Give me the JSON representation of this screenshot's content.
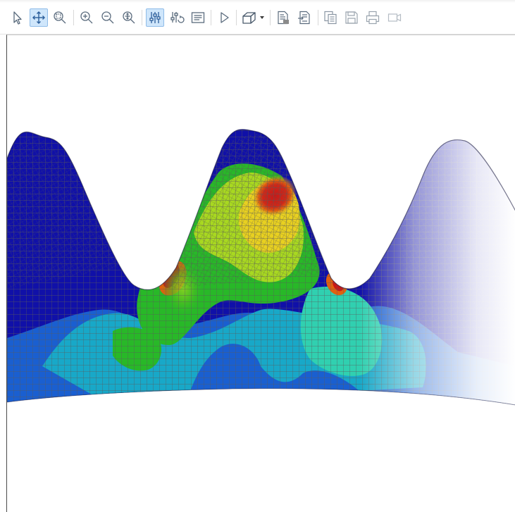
{
  "toolbar": {
    "tools": [
      {
        "id": "select",
        "icon": "select-arrow-icon",
        "active": false
      },
      {
        "id": "pan",
        "icon": "pan-move-icon",
        "active": true
      },
      {
        "id": "zoom-box",
        "icon": "zoom-box-icon",
        "active": false
      },
      {
        "id": "zoom-in",
        "icon": "zoom-in-icon",
        "active": false
      },
      {
        "id": "zoom-out",
        "icon": "zoom-out-icon",
        "active": false
      },
      {
        "id": "zoom-fit",
        "icon": "zoom-fit-icon",
        "active": false
      },
      {
        "id": "adjust",
        "icon": "sliders-icon",
        "active": true
      },
      {
        "id": "adjust-refresh",
        "icon": "sliders-refresh-icon",
        "active": false
      },
      {
        "id": "text-report",
        "icon": "text-list-icon",
        "active": false
      },
      {
        "id": "play",
        "icon": "play-icon",
        "active": false
      },
      {
        "id": "view-cube",
        "icon": "view-cube-dropdown-icon",
        "active": false
      },
      {
        "id": "export-image",
        "icon": "export-image-icon",
        "active": false
      },
      {
        "id": "export-data",
        "icon": "export-data-icon",
        "active": false
      },
      {
        "id": "copy",
        "icon": "copy-icon",
        "active": false
      },
      {
        "id": "save",
        "icon": "save-icon",
        "active": false
      },
      {
        "id": "print",
        "icon": "print-icon",
        "active": false
      },
      {
        "id": "record",
        "icon": "video-camera-icon",
        "active": false
      }
    ]
  },
  "viewport": {
    "content": "fem-stress-contour-gear-teeth",
    "colors": {
      "background": "#ffffff",
      "mesh": "#5a5a5a",
      "level0": "#1010a8",
      "level1": "#1a5fd0",
      "level2": "#18a8c8",
      "level3": "#30d0b0",
      "level4": "#28b828",
      "level5": "#a8d820",
      "level6": "#e8d020",
      "level7": "#e06010",
      "level8": "#c81818"
    }
  }
}
